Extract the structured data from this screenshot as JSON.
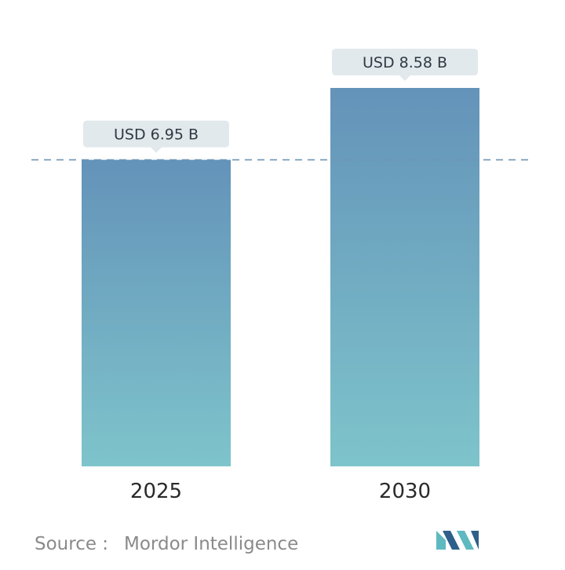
{
  "chart_data": {
    "type": "bar",
    "categories": [
      "2025",
      "2030"
    ],
    "values": [
      6.95,
      8.58
    ],
    "data_labels": [
      "USD 6.95 B",
      "USD 8.58 B"
    ],
    "title": "",
    "xlabel": "",
    "ylabel": "",
    "ylim": [
      0,
      8.58
    ],
    "grid": false,
    "reference_line": 6.95,
    "colors": {
      "bar_top": "#6493b9",
      "bar_bottom": "#7ec4cb",
      "label_box": "#e1e9ec",
      "reference_line": "#6e95b5"
    }
  },
  "footer": {
    "source_prefix": "Source :",
    "source_name": "Mordor Intelligence",
    "logo_icon": "mordor-intelligence-logo",
    "logo_colors": [
      "#2f5f8a",
      "#5fb9c0"
    ]
  }
}
